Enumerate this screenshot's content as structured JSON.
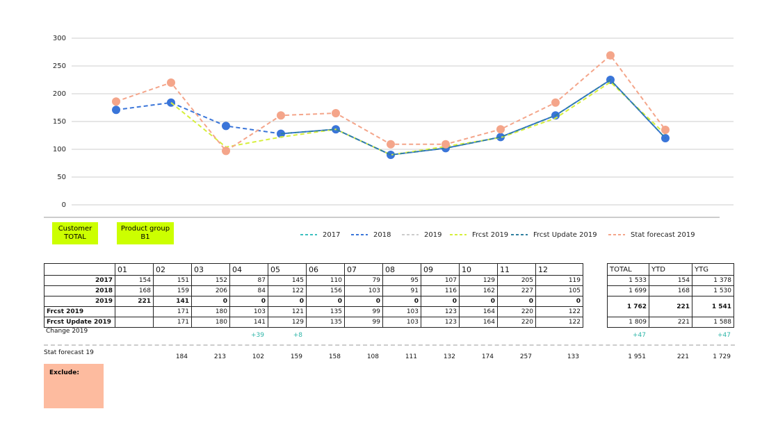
{
  "chart_data": {
    "type": "line",
    "categories": [
      null,
      null,
      null,
      null,
      null,
      null,
      null,
      null,
      null,
      null,
      null
    ],
    "ylim": [
      0,
      300
    ],
    "yticks": [
      0,
      50,
      100,
      150,
      200,
      250,
      300
    ],
    "grid": true,
    "legend": "bottom",
    "series": [
      {
        "name": "2017",
        "color": "#3cc0c0",
        "values": [
          null,
          null,
          null,
          null,
          null,
          null,
          null,
          null,
          null,
          null,
          null
        ]
      },
      {
        "name": "2018",
        "color": "#3a75d9",
        "markers": true,
        "values": [
          171,
          184,
          142,
          128,
          136,
          90,
          102,
          122,
          161,
          225,
          120
        ]
      },
      {
        "name": "2019",
        "color": "#cccccc",
        "values": [
          null,
          null,
          null,
          null,
          null,
          null,
          null,
          null,
          null,
          null,
          null
        ]
      },
      {
        "name": "Frcst 2019",
        "color": "#d6ef3a",
        "values": [
          null,
          184,
          104,
          122,
          136,
          90,
          105,
          121,
          156,
          221,
          127
        ]
      },
      {
        "name": "Frcst Update 2019",
        "color": "#2f7f9f",
        "values": [
          null,
          null,
          null,
          128,
          136,
          90,
          102,
          122,
          161,
          225,
          120
        ]
      },
      {
        "name": "Stat forecast 2019",
        "color": "#f4a58a",
        "markers": true,
        "values": [
          186,
          220,
          97,
          161,
          165,
          109,
          109,
          136,
          184,
          269,
          135
        ]
      }
    ]
  },
  "filters": [
    {
      "label": "Customer",
      "value": "TOTAL"
    },
    {
      "label": "Product group",
      "value": "B1"
    }
  ],
  "table": {
    "columns": [
      "01",
      "02",
      "03",
      "04",
      "05",
      "06",
      "07",
      "08",
      "09",
      "10",
      "11",
      "12"
    ],
    "rows": [
      {
        "label": "2017",
        "values": [
          154,
          151,
          152,
          87,
          145,
          110,
          79,
          95,
          107,
          129,
          205,
          119
        ]
      },
      {
        "label": "2018",
        "values": [
          168,
          159,
          206,
          84,
          122,
          156,
          103,
          91,
          116,
          162,
          227,
          105
        ]
      },
      {
        "label": "2019",
        "values": [
          221,
          141,
          0,
          0,
          0,
          0,
          0,
          0,
          0,
          0,
          0,
          0
        ]
      },
      {
        "label": "Frcst 2019",
        "values": [
          null,
          171,
          180,
          103,
          121,
          135,
          99,
          103,
          123,
          164,
          220,
          122
        ]
      },
      {
        "label": "Frcst Update 2019",
        "values": [
          null,
          171,
          180,
          141,
          129,
          135,
          99,
          103,
          123,
          164,
          220,
          122
        ]
      }
    ]
  },
  "totals": {
    "columns": [
      "TOTAL",
      "YTD",
      "YTG"
    ],
    "rows": [
      [
        "1 533",
        154,
        "1 378"
      ],
      [
        "1 699",
        168,
        "1 530"
      ],
      [
        "1 762",
        221,
        "1 541"
      ],
      [
        "1 809",
        221,
        "1 588"
      ]
    ]
  },
  "change": {
    "label": "Change 2019",
    "values": [
      null,
      null,
      null,
      "+39",
      "+8",
      null,
      null,
      null,
      null,
      null,
      null,
      null
    ],
    "totals": [
      "+47",
      null,
      "+47"
    ]
  },
  "stat_forecast": {
    "label": "Stat forecast 19",
    "values": [
      null,
      184,
      213,
      102,
      159,
      158,
      108,
      111,
      132,
      174,
      257,
      133
    ],
    "totals": [
      "1 951",
      221,
      "1 729"
    ]
  },
  "exclude": {
    "label": "Exclude:"
  }
}
